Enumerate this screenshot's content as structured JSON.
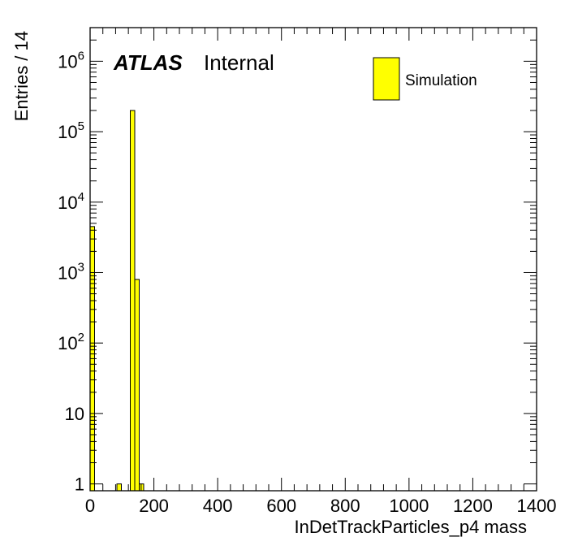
{
  "chart_data": {
    "type": "bar",
    "xlabel": "InDetTrackParticles_p4 mass",
    "ylabel": "Entries / 14",
    "xlim": [
      0,
      1400
    ],
    "ylim": [
      0.8,
      3000000
    ],
    "yscale": "log",
    "grid": false,
    "bin_width": 14,
    "x_ticks": [
      "0",
      "200",
      "400",
      "600",
      "800",
      "1000",
      "1200",
      "1400"
    ],
    "y_ticks": [
      {
        "base": "1",
        "exp": ""
      },
      {
        "base": "10",
        "exp": ""
      },
      {
        "base": "10",
        "exp": "2"
      },
      {
        "base": "10",
        "exp": "3"
      },
      {
        "base": "10",
        "exp": "4"
      },
      {
        "base": "10",
        "exp": "5"
      },
      {
        "base": "10",
        "exp": "6"
      }
    ],
    "series": [
      {
        "name": "Simulation",
        "color": "#ffff00",
        "bins": [
          {
            "x0": 0,
            "x1": 14,
            "value": 4500
          },
          {
            "x0": 84,
            "x1": 98,
            "value": 1
          },
          {
            "x0": 126,
            "x1": 140,
            "value": 200000
          },
          {
            "x0": 140,
            "x1": 154,
            "value": 800
          },
          {
            "x0": 154,
            "x1": 168,
            "value": 1
          }
        ]
      }
    ],
    "legend_position": "top-right",
    "annotation": {
      "experiment": "ATLAS",
      "status": "Internal"
    }
  }
}
